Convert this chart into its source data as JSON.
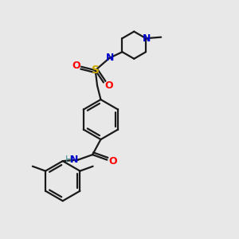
{
  "background_color": "#e8e8e8",
  "bond_color": "#1a1a1a",
  "figsize": [
    3.0,
    3.0
  ],
  "dpi": 100,
  "atom_colors": {
    "N": "#0000cc",
    "O": "#ff0000",
    "S": "#ccaa00",
    "C": "#1a1a1a",
    "H": "#4a9090"
  }
}
